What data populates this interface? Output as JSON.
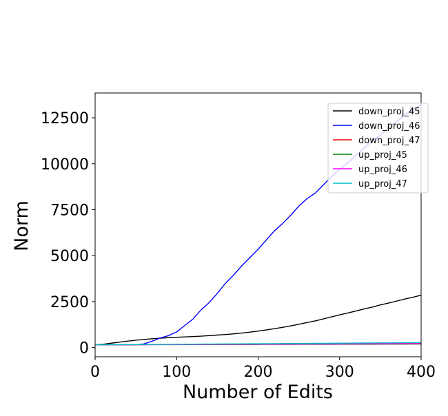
{
  "chart_data": {
    "type": "line",
    "xlabel": "Number of Edits",
    "ylabel": "Norm",
    "x": [
      0,
      10,
      20,
      30,
      40,
      50,
      60,
      70,
      80,
      90,
      100,
      110,
      120,
      130,
      140,
      150,
      160,
      170,
      180,
      190,
      200,
      210,
      220,
      230,
      240,
      250,
      260,
      270,
      280,
      290,
      300,
      310,
      320,
      330,
      340,
      350,
      360,
      370,
      380,
      390,
      400
    ],
    "series": [
      {
        "name": "down_proj_45",
        "color": "#000000",
        "values": [
          150,
          180,
          240,
          300,
          350,
          400,
          440,
          480,
          510,
          540,
          560,
          580,
          600,
          620,
          650,
          680,
          710,
          750,
          790,
          840,
          900,
          960,
          1030,
          1100,
          1180,
          1270,
          1360,
          1450,
          1560,
          1670,
          1780,
          1880,
          1990,
          2100,
          2200,
          2320,
          2420,
          2530,
          2640,
          2740,
          2850
        ]
      },
      {
        "name": "down_proj_46",
        "color": "#0000ff",
        "values": [
          150,
          150,
          150,
          150,
          150,
          160,
          200,
          350,
          520,
          650,
          850,
          1200,
          1550,
          2050,
          2450,
          2950,
          3500,
          3950,
          4450,
          4900,
          5350,
          5850,
          6350,
          6750,
          7200,
          7700,
          8100,
          8400,
          8850,
          9300,
          9700,
          10050,
          10450,
          10850,
          11250,
          11550,
          11950,
          12300,
          12650,
          12950,
          13200
        ]
      },
      {
        "name": "down_proj_47",
        "color": "#ff0000",
        "values": [
          150,
          152,
          154,
          156,
          158,
          160,
          162,
          164,
          166,
          168,
          170,
          172,
          174,
          176,
          178,
          180,
          182,
          184,
          186,
          188,
          190,
          192,
          195,
          215,
          220,
          221,
          222,
          223,
          224,
          225,
          226,
          227,
          228,
          229,
          230,
          231,
          232,
          233,
          234,
          235,
          236
        ]
      },
      {
        "name": "up_proj_45",
        "color": "#008000",
        "values": [
          150,
          151,
          152,
          153,
          154,
          155,
          156,
          157,
          158,
          159,
          160,
          161,
          162,
          163,
          164,
          165,
          166,
          167,
          168,
          169,
          170,
          171,
          172,
          173,
          174,
          175,
          176,
          177,
          178,
          179,
          180,
          181,
          182,
          183,
          184,
          185,
          186,
          187,
          188,
          189,
          190
        ]
      },
      {
        "name": "up_proj_46",
        "color": "#ff00ff",
        "values": [
          150,
          151,
          153,
          154,
          156,
          157,
          159,
          160,
          162,
          163,
          165,
          166,
          168,
          169,
          171,
          172,
          174,
          175,
          177,
          178,
          180,
          181,
          183,
          184,
          186,
          187,
          189,
          190,
          192,
          193,
          195,
          196,
          198,
          199,
          201,
          202,
          204,
          205,
          207,
          208,
          210
        ]
      },
      {
        "name": "up_proj_47",
        "color": "#00bfbf",
        "values": [
          150,
          153,
          156,
          159,
          162,
          165,
          168,
          171,
          174,
          177,
          180,
          183,
          186,
          189,
          192,
          195,
          198,
          201,
          204,
          207,
          210,
          213,
          216,
          219,
          222,
          225,
          228,
          231,
          234,
          237,
          240,
          243,
          246,
          249,
          252,
          255,
          258,
          261,
          264,
          267,
          270
        ]
      }
    ],
    "xlim": [
      0,
      400
    ],
    "xticks": [
      0,
      100,
      200,
      300,
      400
    ],
    "ylim": [
      -500,
      13850
    ],
    "yticks": [
      0,
      2500,
      5000,
      7500,
      10000,
      12500
    ],
    "legend": "upper right"
  }
}
